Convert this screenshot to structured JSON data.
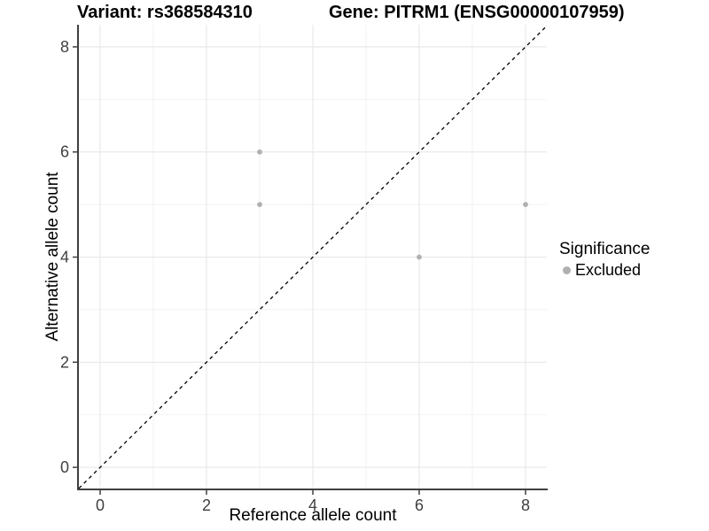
{
  "titles": {
    "variant": "Variant: rs368584310",
    "gene": "Gene: PITRM1 (ENSG00000107959)"
  },
  "axes": {
    "x_label": "Reference allele count",
    "y_label": "Alternative allele count"
  },
  "legend": {
    "title": "Significance",
    "items": [
      {
        "label": "Excluded",
        "color": "#b0b0b0"
      }
    ]
  },
  "chart_data": {
    "type": "scatter",
    "title": "Variant: rs368584310   Gene: PITRM1 (ENSG00000107959)",
    "xlabel": "Reference allele count",
    "ylabel": "Alternative allele count",
    "xlim": [
      -0.4,
      8.4
    ],
    "ylim": [
      -0.42,
      8.42
    ],
    "xticks": [
      0,
      2,
      4,
      6,
      8
    ],
    "yticks": [
      0,
      2,
      4,
      6,
      8
    ],
    "minor_grid_x": [
      1,
      3,
      5,
      7
    ],
    "minor_grid_y": [
      1,
      3,
      5,
      7
    ],
    "grid": true,
    "legend_position": "right",
    "series": [
      {
        "name": "Excluded",
        "color": "#b0b0b0",
        "points": [
          {
            "x": 3,
            "y": 5
          },
          {
            "x": 3,
            "y": 6
          },
          {
            "x": 6,
            "y": 4
          },
          {
            "x": 8,
            "y": 5
          }
        ]
      }
    ],
    "reference_line": {
      "type": "identity",
      "equation": "y = x",
      "style": "dashed",
      "color": "#000000"
    }
  },
  "colors": {
    "background": "#ffffff",
    "grid_major": "#e7e7e7",
    "grid_minor": "#f2f2f2",
    "axis_line": "#404040",
    "tick_label": "#404040",
    "point": "#b0b0b0",
    "reference_line": "#000000"
  }
}
